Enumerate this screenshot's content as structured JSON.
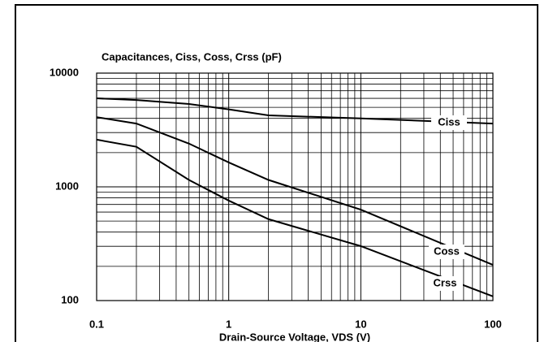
{
  "chart_data": {
    "type": "line",
    "title": "Capacitances, Ciss, Coss, Crss (pF)",
    "x_label": "Drain-Source Voltage, VDS (V)",
    "x": [
      0.1,
      0.2,
      0.5,
      1,
      2,
      10,
      100
    ],
    "series": [
      {
        "name": "Ciss",
        "color": "#000000",
        "values": [
          6000,
          5800,
          5350,
          4800,
          4250,
          4000,
          3600
        ]
      },
      {
        "name": "Coss",
        "color": "#000000",
        "values": [
          4100,
          3600,
          2400,
          1640,
          1150,
          630,
          206
        ]
      },
      {
        "name": "Crss",
        "color": "#000000",
        "values": [
          2600,
          2250,
          1150,
          757,
          520,
          301,
          109
        ]
      }
    ],
    "xlim": [
      0.1,
      100
    ],
    "xticks": [
      0.1,
      1,
      10,
      100
    ],
    "ylim": [
      100,
      10000
    ],
    "yticks": [
      100,
      1000,
      10000
    ],
    "x_log": true,
    "y_log": true,
    "grid": true
  }
}
